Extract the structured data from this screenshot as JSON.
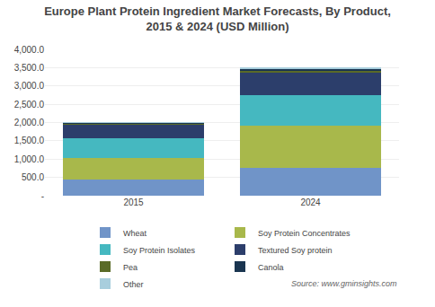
{
  "chart_data": {
    "type": "bar",
    "stacked": true,
    "title": "Europe Plant Protein Ingredient Market Forecasts, By Product,\n2015 & 2024 (USD Million)",
    "categories": [
      "2015",
      "2024"
    ],
    "series": [
      {
        "name": "Wheat",
        "color": "#7094c8",
        "values": [
          450,
          750
        ]
      },
      {
        "name": "Soy Protein Concentrates",
        "color": "#a8b84b",
        "values": [
          590,
          1170
        ]
      },
      {
        "name": "Soy Protein Isolates",
        "color": "#45b8c0",
        "values": [
          530,
          830
        ]
      },
      {
        "name": "Textured Soy protein",
        "color": "#2c3e6b",
        "values": [
          380,
          600
        ]
      },
      {
        "name": "Pea",
        "color": "#5a6b28",
        "values": [
          30,
          80
        ]
      },
      {
        "name": "Canola",
        "color": "#1a3550",
        "values": [
          15,
          30
        ]
      },
      {
        "name": "Other",
        "color": "#a8cedd",
        "values": [
          5,
          40
        ]
      }
    ],
    "ylim": [
      0,
      4000
    ],
    "yticks": [
      {
        "value": 0,
        "label": "-"
      },
      {
        "value": 500,
        "label": "500.0"
      },
      {
        "value": 1000,
        "label": "1,000.0"
      },
      {
        "value": 1500,
        "label": "1,500.0"
      },
      {
        "value": 2000,
        "label": "2,000.0"
      },
      {
        "value": 2500,
        "label": "2,500.0"
      },
      {
        "value": 3000,
        "label": "3,000.0"
      },
      {
        "value": 3500,
        "label": "3,500.0"
      },
      {
        "value": 4000,
        "label": "4,000.0"
      }
    ],
    "grid": true,
    "legend": "bottom",
    "annotations": [
      "Source: www.gminsights.com"
    ]
  }
}
